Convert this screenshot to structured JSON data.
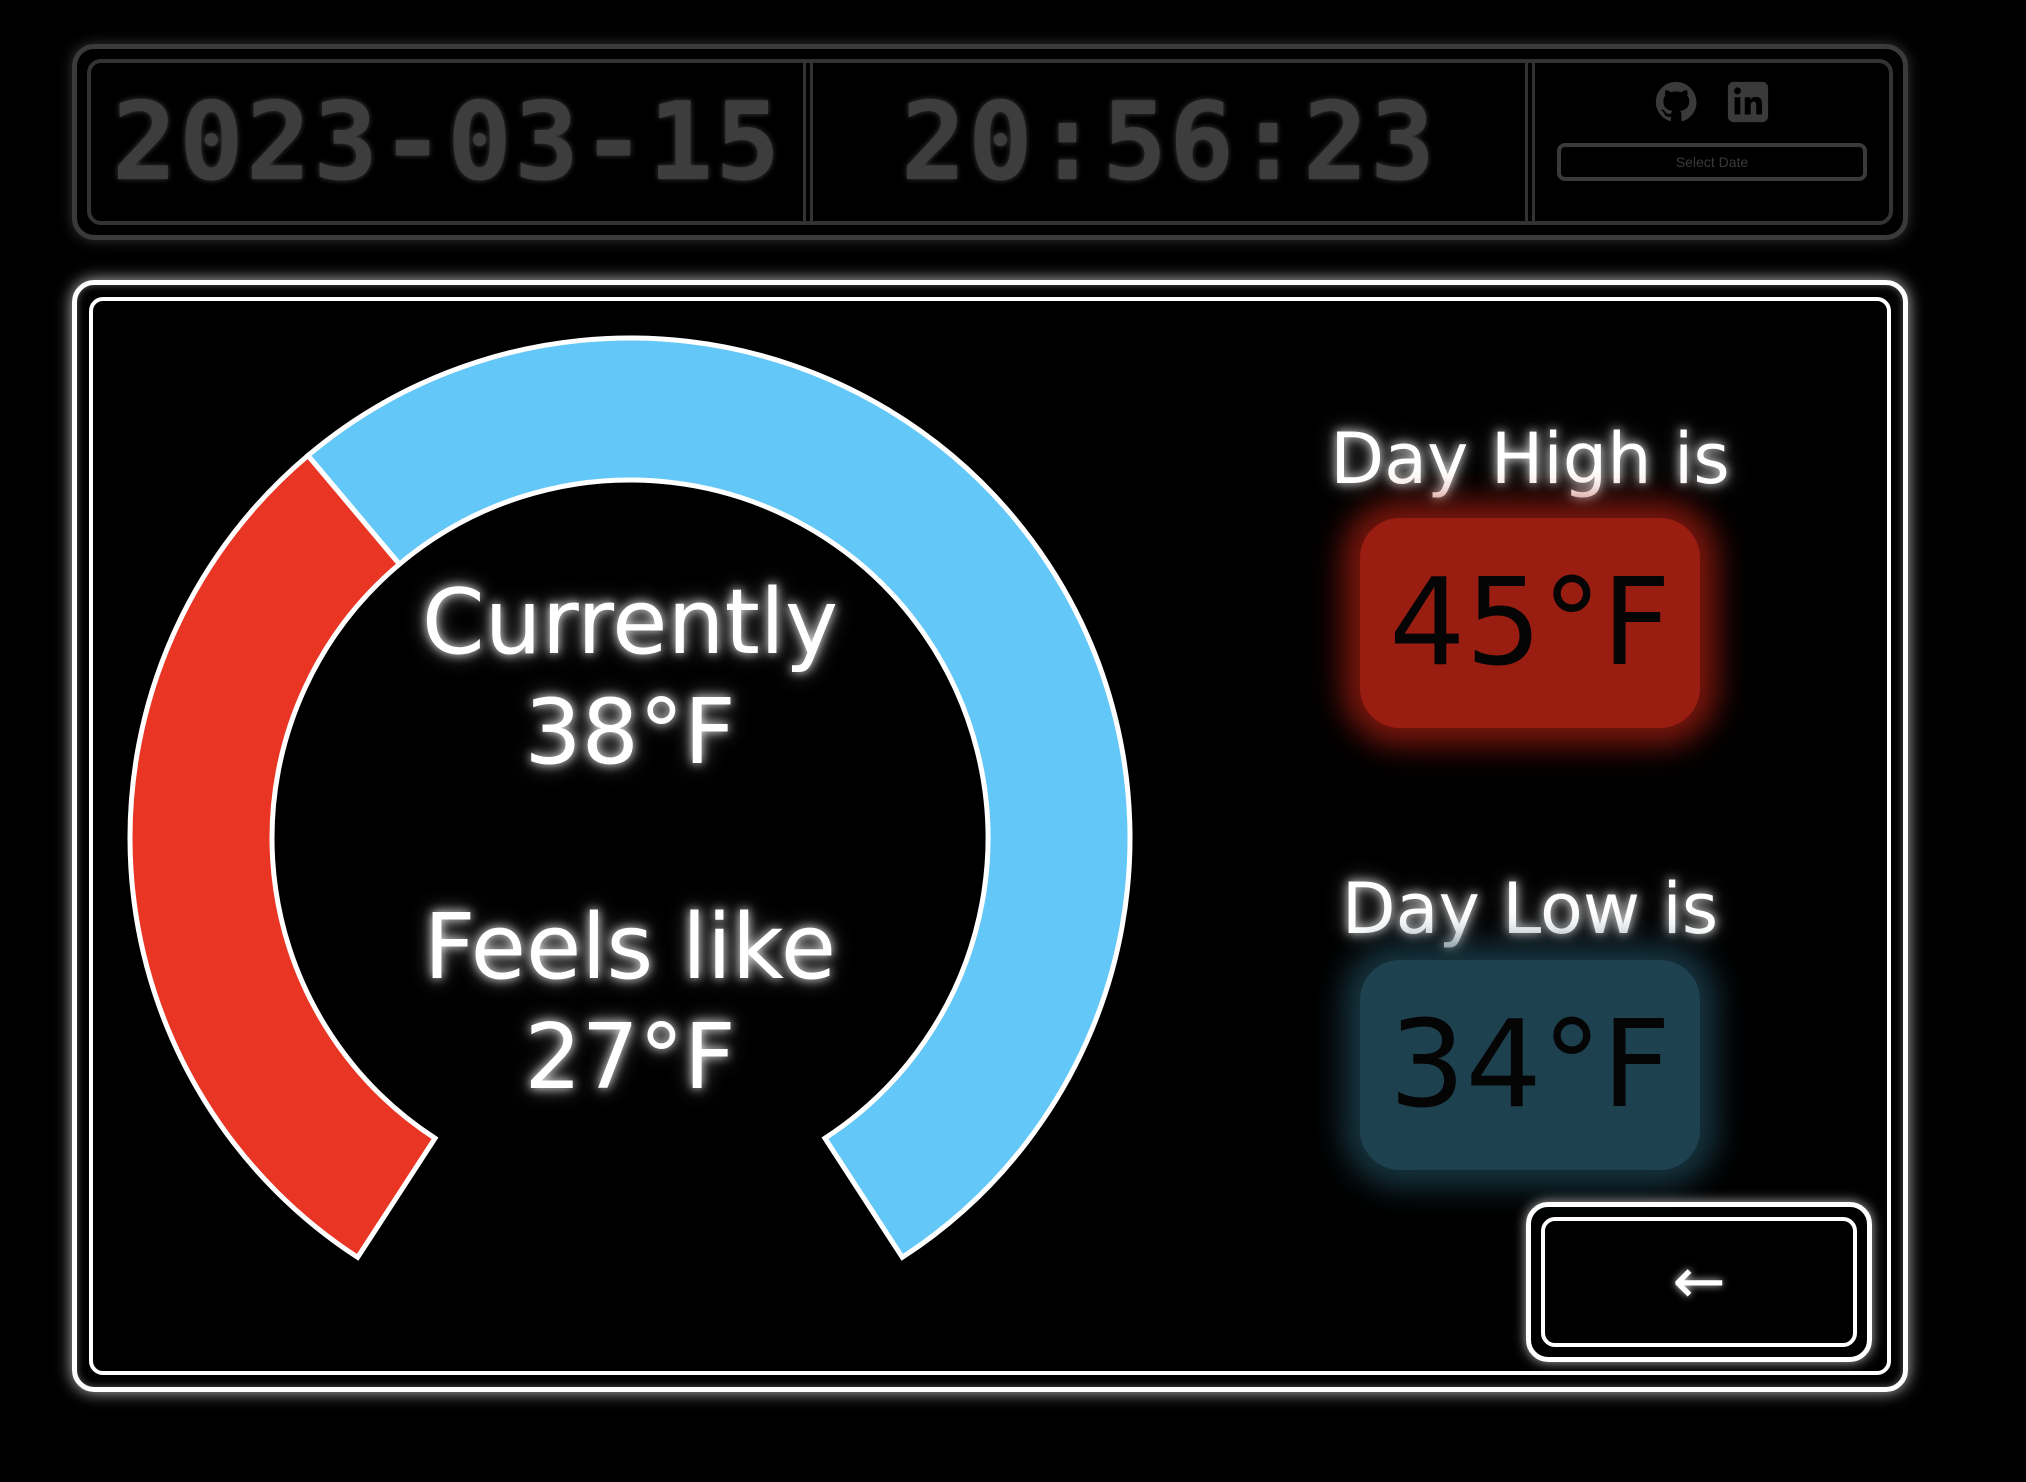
{
  "header": {
    "date": "2023-03-15",
    "time": "20:56:23",
    "select_date_label": "Select Date",
    "links": [
      {
        "icon": "github-icon"
      },
      {
        "icon": "linkedin-icon"
      }
    ]
  },
  "weather": {
    "current_label": "Currently",
    "current_temp": "38°F",
    "feels_like_label": "Feels like",
    "feels_like_temp": "27°F",
    "high_label": "Day High is",
    "high_temp": "45°F",
    "low_label": "Day Low is",
    "low_temp": "34°F",
    "gauge": {
      "min": 34,
      "max": 45,
      "value": 38,
      "warm_color": "#e83524",
      "cool_color": "#63c7f7"
    }
  },
  "back_button": {
    "label": "←"
  },
  "colors": {
    "background": "#000000",
    "high_chip": "#9a1d12",
    "low_chip": "#1e4150",
    "frame": "#ffffff",
    "dim_frame": "#3a3a3a"
  }
}
